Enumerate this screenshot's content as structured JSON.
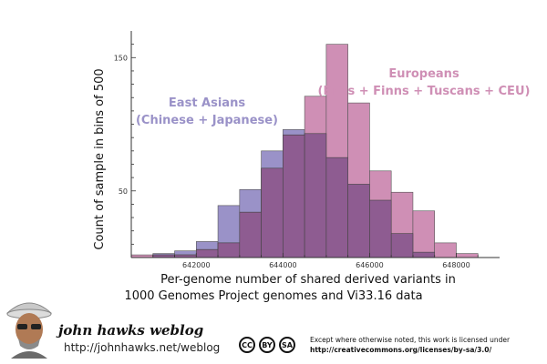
{
  "chart_data": {
    "type": "bar",
    "bin_width": 500,
    "ylim": [
      0,
      170
    ],
    "xlim": [
      640500,
      649000
    ],
    "x_ticks": [
      642000,
      644000,
      646000,
      648000
    ],
    "x_tick_labels": [
      "642000",
      "644000",
      "646000",
      "648000"
    ],
    "y_ticks": [
      50,
      150
    ],
    "y_tick_labels": [
      "50",
      "150"
    ],
    "ylabel": "Count of sample in bins of 500",
    "xlabel_line1": "Per-genome number of shared derived variants in",
    "xlabel_line2": "1000 Genomes Project genomes and Vi33.16 data",
    "grid": false,
    "series": [
      {
        "name_line1": "East Asians",
        "name_line2": "(Chinese + Japanese)",
        "color": "#9a92c8",
        "bins": [
          641000,
          641500,
          642000,
          642500,
          643000,
          643500,
          644000,
          644500,
          645000,
          645500,
          646000,
          646500,
          647000
        ],
        "values": [
          3,
          5,
          12,
          39,
          51,
          80,
          96,
          93,
          75,
          55,
          43,
          18,
          4
        ]
      },
      {
        "name_line1": "Europeans",
        "name_line2": "(Brits + Finns + Tuscans + CEU)",
        "color": "#cf8fb5",
        "bins": [
          640500,
          641000,
          641500,
          642000,
          642500,
          643000,
          643500,
          644000,
          644500,
          645000,
          645500,
          646000,
          646500,
          647000,
          647500,
          648000
        ],
        "values": [
          2,
          2,
          2,
          6,
          11,
          34,
          67,
          92,
          121,
          160,
          116,
          65,
          49,
          35,
          11,
          3
        ]
      }
    ]
  },
  "footer": {
    "blog_title": "john hawks weblog",
    "blog_url": "http://johnhawks.net/weblog",
    "cc_icons": [
      "CC",
      "BY",
      "SA"
    ],
    "license_line1": "Except where otherwise noted, this work is licensed under",
    "license_url": "http://creativecommons.org/licenses/by-sa/3.0/"
  }
}
